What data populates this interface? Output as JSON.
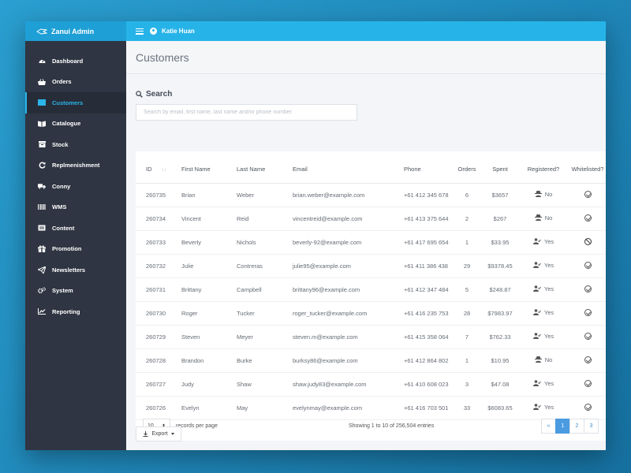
{
  "app": {
    "brand": "Zanui Admin",
    "user": "Katie Huan"
  },
  "sidebar": {
    "items": [
      {
        "label": "Dashboard",
        "icon": "dashboard-icon"
      },
      {
        "label": "Orders",
        "icon": "basket-icon"
      },
      {
        "label": "Customers",
        "icon": "id-card-icon",
        "active": true
      },
      {
        "label": "Catalogue",
        "icon": "book-icon"
      },
      {
        "label": "Stock",
        "icon": "box-icon"
      },
      {
        "label": "Replmenishment",
        "icon": "refresh-icon"
      },
      {
        "label": "Conny",
        "icon": "truck-icon"
      },
      {
        "label": "WMS",
        "icon": "barcode-icon"
      },
      {
        "label": "Content",
        "icon": "content-icon"
      },
      {
        "label": "Promotion",
        "icon": "gift-icon"
      },
      {
        "label": "Newsletters",
        "icon": "send-icon"
      },
      {
        "label": "System",
        "icon": "cogs-icon"
      },
      {
        "label": "Reporting",
        "icon": "line-chart-icon"
      }
    ]
  },
  "page": {
    "title": "Customers"
  },
  "search": {
    "label": "Search",
    "placeholder": "Search by email, first name, last name and/or phone number"
  },
  "table": {
    "columns": [
      "ID",
      "First Name",
      "Last Name",
      "Email",
      "Phone",
      "Orders",
      "Spent",
      "Registered?",
      "Whitelisted?"
    ],
    "sort_indicator": "↑↓",
    "rows": [
      {
        "id": "260735",
        "first": "Brian",
        "last": "Weber",
        "email": "brian.weber@example.com",
        "phone": "+61 412 345 678",
        "orders": "6",
        "spent": "$3657",
        "registered": "No",
        "whitelisted": "yes"
      },
      {
        "id": "260734",
        "first": "Vincent",
        "last": "Reid",
        "email": "vincentreid@example.com",
        "phone": "+61 413 375 644",
        "orders": "2",
        "spent": "$267",
        "registered": "No",
        "whitelisted": "yes"
      },
      {
        "id": "260733",
        "first": "Beverly",
        "last": "Nichols",
        "email": "beverly-92@example.com",
        "phone": "+61 417 695 654",
        "orders": "1",
        "spent": "$33.95",
        "registered": "Yes",
        "whitelisted": "no"
      },
      {
        "id": "260732",
        "first": "Julie",
        "last": "Contreras",
        "email": "julie95@example.com",
        "phone": "+61 411 386 438",
        "orders": "29",
        "spent": "$9378.45",
        "registered": "Yes",
        "whitelisted": "yes"
      },
      {
        "id": "260731",
        "first": "Brittany",
        "last": "Campbell",
        "email": "brittany96@example.com",
        "phone": "+61 412 347 484",
        "orders": "5",
        "spent": "$248.87",
        "registered": "Yes",
        "whitelisted": "yes"
      },
      {
        "id": "260730",
        "first": "Roger",
        "last": "Tucker",
        "email": "roger_tucker@example.com",
        "phone": "+61 416 235 753",
        "orders": "28",
        "spent": "$7983.97",
        "registered": "Yes",
        "whitelisted": "yes"
      },
      {
        "id": "260729",
        "first": "Steven",
        "last": "Meyer",
        "email": "steven.m@example.com",
        "phone": "+61 415 358 064",
        "orders": "7",
        "spent": "$762.33",
        "registered": "Yes",
        "whitelisted": "yes"
      },
      {
        "id": "260728",
        "first": "Brandon",
        "last": "Burke",
        "email": "burksy86@example.com",
        "phone": "+61 412 864 802",
        "orders": "1",
        "spent": "$10.95",
        "registered": "No",
        "whitelisted": "yes"
      },
      {
        "id": "260727",
        "first": "Judy",
        "last": "Shaw",
        "email": "shaw.judy83@example.com",
        "phone": "+61 410 608 023",
        "orders": "3",
        "spent": "$47.08",
        "registered": "Yes",
        "whitelisted": "yes"
      },
      {
        "id": "260726",
        "first": "Evelyn",
        "last": "May",
        "email": "evelynmay@example.com",
        "phone": "+61 416 703 501",
        "orders": "33",
        "spent": "$6083.65",
        "registered": "Yes",
        "whitelisted": "yes"
      }
    ]
  },
  "footer": {
    "page_length": "10",
    "records_label": "records per page",
    "info": "Showing 1 to 10 of 256,504 entries",
    "pager": [
      "«",
      "1",
      "2",
      "3"
    ]
  },
  "export": {
    "label": "Export"
  },
  "colors": {
    "brand": "#1e9fd6",
    "topbar": "#26b4e8",
    "sidebar": "#2f3542",
    "active": "#2bb5ea",
    "pager_active": "#4b9be0"
  }
}
